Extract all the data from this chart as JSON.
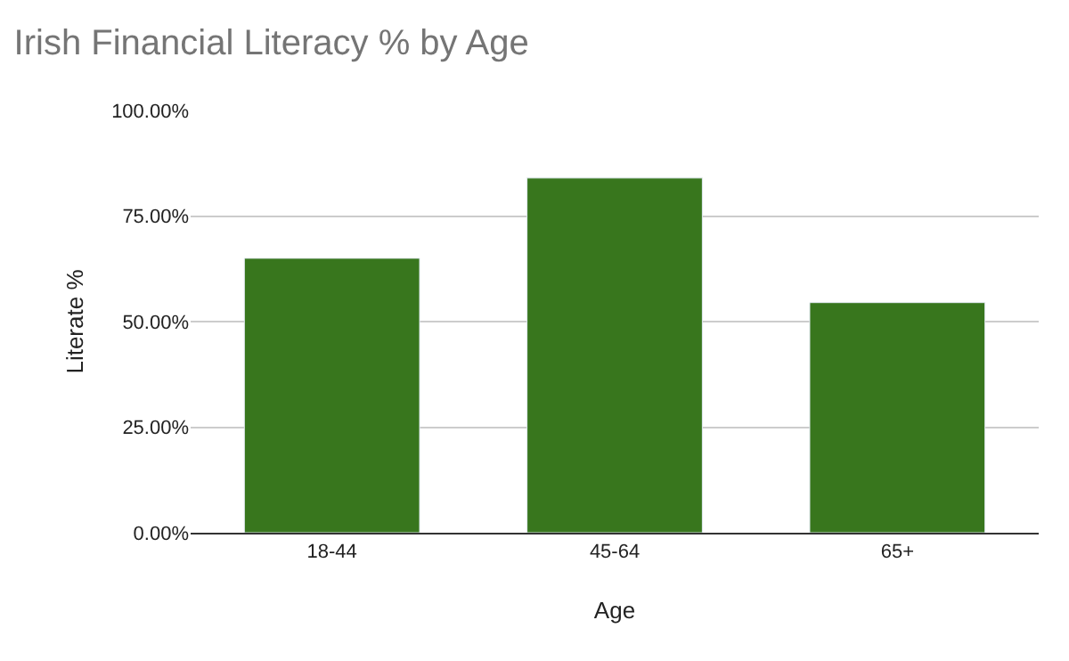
{
  "chart_data": {
    "type": "bar",
    "title": "Irish Financial Literacy % by Age",
    "xlabel": "Age",
    "ylabel": "Literate %",
    "categories": [
      "18-44",
      "45-64",
      "65+"
    ],
    "series": [
      {
        "color": "#38761d",
        "values": [
          65,
          84,
          54.5
        ]
      }
    ],
    "ylim": [
      0,
      100
    ],
    "yticks": [
      {
        "value": 0,
        "label": "0.00%"
      },
      {
        "value": 25,
        "label": "25.00%"
      },
      {
        "value": 50,
        "label": "50.00%"
      },
      {
        "value": 75,
        "label": "75.00%"
      },
      {
        "value": 100,
        "label": "100.00%"
      }
    ],
    "grid": "y"
  }
}
